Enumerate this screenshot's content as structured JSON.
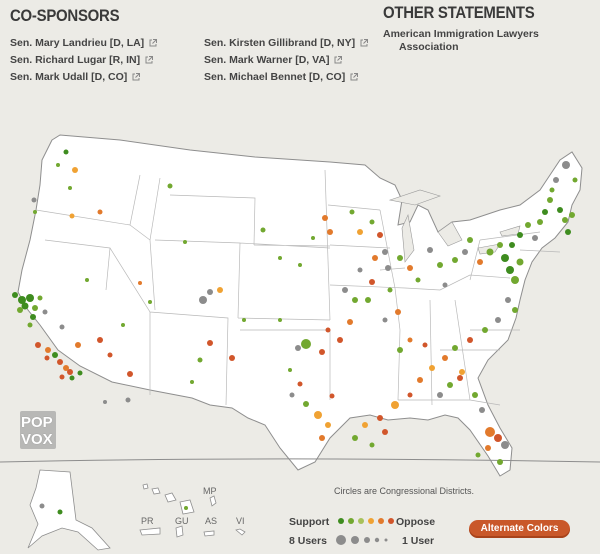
{
  "cosponsors": {
    "title": "CO-SPONSORS",
    "senators": [
      "Sen. Mary Landrieu [D, LA]",
      "Sen. Richard Lugar [R, IN]",
      "Sen. Mark Udall [D, CO]",
      "Sen. Kirsten Gillibrand [D, NY]",
      "Sen. Mark Warner [D, VA]",
      "Sen. Michael Bennet [D, CO]"
    ]
  },
  "other_statements": {
    "title": "OTHER STATEMENTS",
    "line1": "American Immigration Lawyers",
    "line2": "Association"
  },
  "map": {
    "note": "Circles are Congressional Districts.",
    "territories": [
      "MP",
      "PR",
      "GU",
      "AS",
      "VI"
    ]
  },
  "logo": {
    "top": "POP",
    "bottom": "VOX"
  },
  "legend": {
    "support": "Support",
    "oppose": "Oppose",
    "users_max": "8 Users",
    "users_min": "1 User",
    "colors": [
      "#3e8c1f",
      "#72a830",
      "#a8c15a",
      "#f0a233",
      "#e27a2c",
      "#d1562b"
    ]
  },
  "alternate_colors_button": "Alternate Colors"
}
